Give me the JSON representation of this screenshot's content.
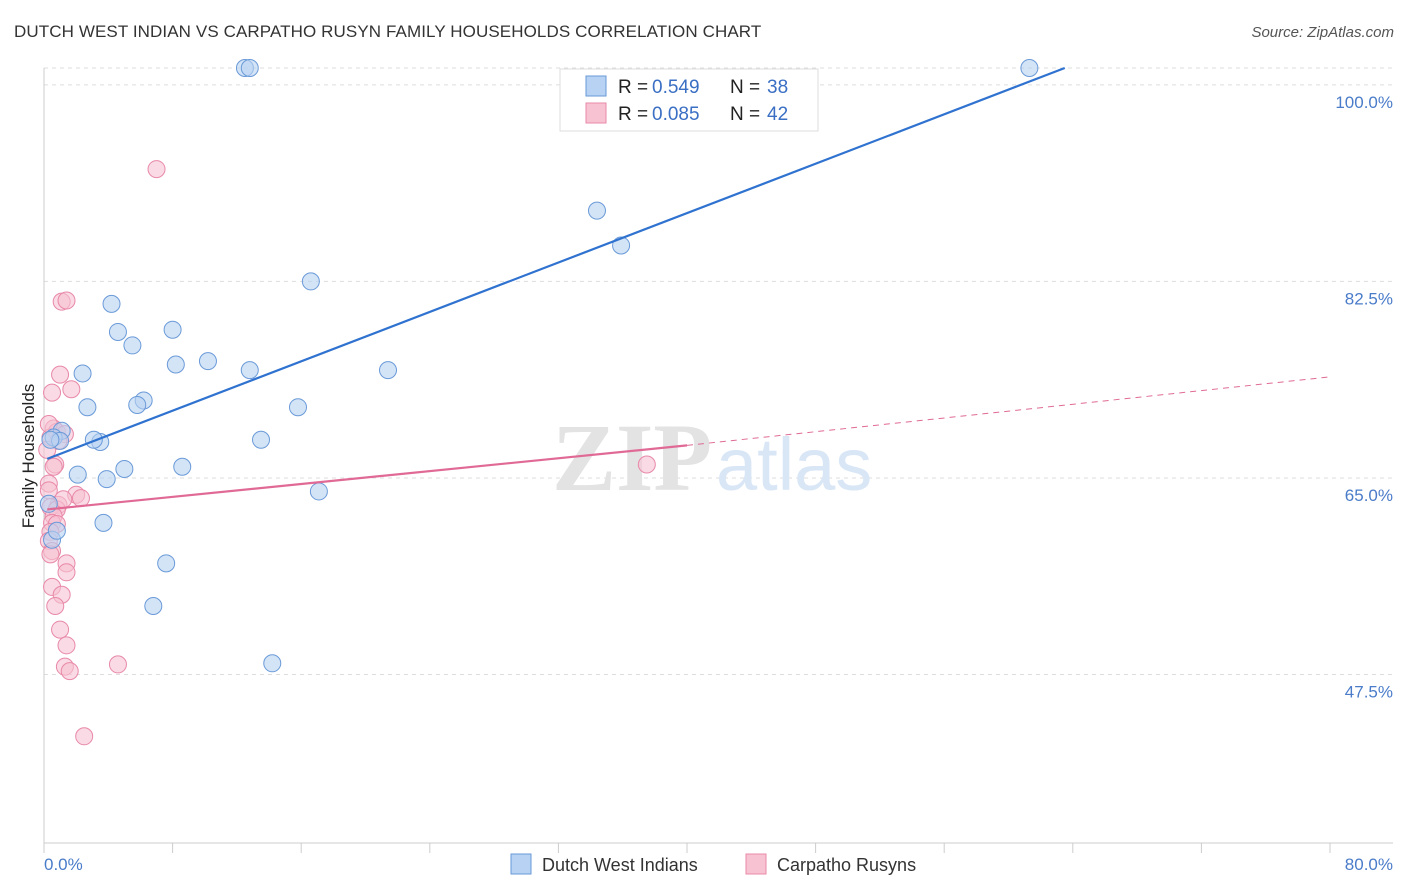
{
  "title": "DUTCH WEST INDIAN VS CARPATHO RUSYN FAMILY HOUSEHOLDS CORRELATION CHART",
  "source": "Source: ZipAtlas.com",
  "watermark": {
    "zip": "ZIP",
    "atlas": "atlas"
  },
  "colors": {
    "blue_fill": "#b7d2f2",
    "blue_stroke": "#6a9ad8",
    "blue_line": "#2f72cf",
    "pink_fill": "#f7c2d2",
    "pink_stroke": "#e889a8",
    "pink_line": "#e06a95",
    "grid": "#dddddd",
    "axis_text": "#4a7cc9"
  },
  "chart_data": {
    "type": "scatter",
    "ylabel": "Family Households",
    "xlim": [
      0,
      80
    ],
    "ylim": [
      32.5,
      101.5
    ],
    "x_tick_labels": [
      {
        "value": 0,
        "label": "0.0%"
      },
      {
        "value": 80,
        "label": "80.0%"
      }
    ],
    "x_minor_ticks": [
      0,
      8,
      16,
      24,
      32,
      40,
      48,
      56,
      64,
      72,
      80
    ],
    "y_ticks": [
      {
        "value": 100.0,
        "label": "100.0%"
      },
      {
        "value": 82.5,
        "label": "82.5%"
      },
      {
        "value": 65.0,
        "label": "65.0%"
      },
      {
        "value": 47.5,
        "label": "47.5%"
      }
    ],
    "legend": {
      "rows": [
        {
          "r_label": "R =",
          "r_value": "0.549",
          "n_label": "N =",
          "n_value": "38"
        },
        {
          "r_label": "R =",
          "r_value": "0.085",
          "n_label": "N =",
          "n_value": "42"
        }
      ]
    },
    "series": [
      {
        "name": "Dutch West Indians",
        "color": "blue",
        "trend": {
          "x0": 0.2,
          "y0": 66.7,
          "x1": 63.5,
          "y1": 101.5,
          "dash_to_x": null
        },
        "points": [
          [
            12.5,
            101.5
          ],
          [
            12.8,
            101.5
          ],
          [
            61.3,
            101.5
          ],
          [
            34.4,
            88.8
          ],
          [
            35.9,
            85.7
          ],
          [
            16.6,
            82.5
          ],
          [
            4.2,
            80.5
          ],
          [
            8.0,
            78.2
          ],
          [
            4.6,
            78.0
          ],
          [
            5.5,
            76.8
          ],
          [
            10.2,
            75.4
          ],
          [
            8.2,
            75.1
          ],
          [
            12.8,
            74.6
          ],
          [
            21.4,
            74.6
          ],
          [
            2.4,
            74.3
          ],
          [
            6.2,
            71.9
          ],
          [
            2.7,
            71.3
          ],
          [
            15.8,
            71.3
          ],
          [
            5.8,
            71.5
          ],
          [
            1.1,
            69.2
          ],
          [
            3.5,
            68.2
          ],
          [
            0.6,
            68.6
          ],
          [
            13.5,
            68.4
          ],
          [
            1.0,
            68.3
          ],
          [
            3.1,
            68.4
          ],
          [
            0.4,
            68.4
          ],
          [
            8.6,
            66.0
          ],
          [
            5.0,
            65.8
          ],
          [
            2.1,
            65.3
          ],
          [
            3.9,
            64.9
          ],
          [
            17.1,
            63.8
          ],
          [
            0.3,
            62.7
          ],
          [
            3.7,
            61.0
          ],
          [
            7.6,
            57.4
          ],
          [
            6.8,
            53.6
          ],
          [
            14.2,
            48.5
          ],
          [
            0.5,
            59.5
          ],
          [
            0.8,
            60.3
          ]
        ]
      },
      {
        "name": "Carpatho Rusyns",
        "color": "pink",
        "trend": {
          "x0": 0.2,
          "y0": 62.2,
          "x1": 40.0,
          "y1": 67.9,
          "dash_to_x": 80.0,
          "dash_y": 74.0
        },
        "points": [
          [
            7.0,
            92.5
          ],
          [
            1.1,
            80.7
          ],
          [
            1.4,
            80.8
          ],
          [
            1.0,
            74.2
          ],
          [
            1.7,
            72.9
          ],
          [
            0.5,
            72.6
          ],
          [
            0.6,
            69.4
          ],
          [
            0.8,
            69.1
          ],
          [
            1.3,
            68.9
          ],
          [
            0.4,
            68.6
          ],
          [
            0.9,
            68.3
          ],
          [
            0.2,
            67.5
          ],
          [
            0.7,
            66.2
          ],
          [
            37.5,
            66.2
          ],
          [
            0.3,
            64.5
          ],
          [
            0.3,
            63.9
          ],
          [
            2.0,
            63.5
          ],
          [
            2.3,
            63.2
          ],
          [
            0.9,
            62.6
          ],
          [
            0.4,
            62.4
          ],
          [
            0.8,
            62.2
          ],
          [
            0.6,
            61.6
          ],
          [
            0.5,
            61.0
          ],
          [
            0.8,
            60.9
          ],
          [
            0.4,
            60.2
          ],
          [
            0.3,
            59.4
          ],
          [
            0.5,
            58.5
          ],
          [
            0.4,
            58.2
          ],
          [
            1.4,
            57.4
          ],
          [
            1.4,
            56.6
          ],
          [
            0.5,
            55.3
          ],
          [
            1.1,
            54.6
          ],
          [
            0.7,
            53.6
          ],
          [
            1.0,
            51.5
          ],
          [
            1.4,
            50.1
          ],
          [
            1.3,
            48.2
          ],
          [
            1.6,
            47.8
          ],
          [
            4.6,
            48.4
          ],
          [
            2.5,
            42.0
          ],
          [
            0.3,
            69.8
          ],
          [
            0.6,
            66.0
          ],
          [
            1.2,
            63.1
          ]
        ]
      }
    ]
  }
}
